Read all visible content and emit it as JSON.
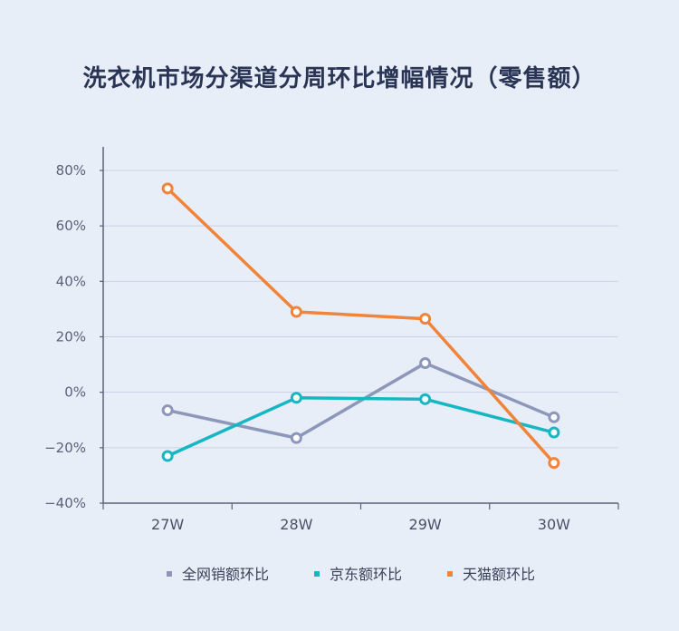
{
  "title": "洗衣机市场分渠道分周环比增幅情况（零售额）",
  "chart_data": {
    "type": "line",
    "title": "洗衣机市场分渠道分周环比增幅情况（零售额）",
    "categories": [
      "27W",
      "28W",
      "29W",
      "30W"
    ],
    "y_ticks": [
      "80%",
      "60%",
      "40%",
      "20%",
      "0%",
      "−20%",
      "−40%"
    ],
    "ylim": [
      -40,
      80
    ],
    "series": [
      {
        "name": "全网销额环比",
        "color": "#8c97ba",
        "values": [
          -6.5,
          -16.5,
          10.5,
          -9
        ]
      },
      {
        "name": "京东额环比",
        "color": "#16b7c2",
        "values": [
          -23,
          -2,
          -2.5,
          -14.5
        ]
      },
      {
        "name": "天猫额环比",
        "color": "#f0843a",
        "values": [
          73.5,
          29,
          26.5,
          -25.5
        ]
      }
    ],
    "grid": true,
    "legend": "bottom"
  }
}
